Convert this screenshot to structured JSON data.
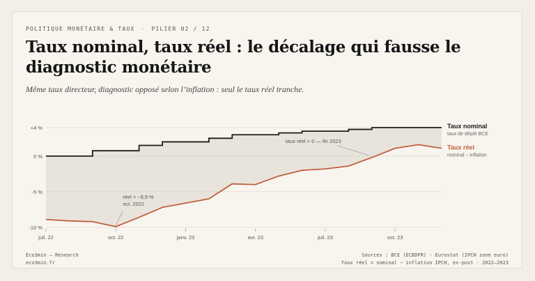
{
  "header": {
    "kicker": "POLITIQUE MONÉTAIRE & TAUX",
    "kicker_sep": "·",
    "kicker_pillar": "PILIER 02 / 12",
    "title": "Taux nominal, taux réel : le décalage qui fausse le diagnostic monétaire",
    "subtitle": "Même taux directeur, diagnostic opposé selon l’inflation : seul le taux réel tranche."
  },
  "footer": {
    "brand": "Eco3min — Research",
    "site": "eco3min.fr",
    "sources": "Sources : BCE (ECBDFR) · Eurostat (IPCH zone euro)",
    "note": "Taux réel = nominal − inflation IPCH, ex-post · 2022–2023"
  },
  "colors": {
    "nominal": "#1c1c1c",
    "real": "#c0603f",
    "gap_fill": "#e9e4db",
    "grid": "#dcd7cd",
    "zero": "#b9b3a8"
  },
  "chart_data": {
    "type": "line",
    "x": [
      "2022-07",
      "2022-08",
      "2022-09",
      "2022-10",
      "2022-11",
      "2022-12",
      "2023-01",
      "2023-02",
      "2023-03",
      "2023-04",
      "2023-05",
      "2023-06",
      "2023-07",
      "2023-08",
      "2023-09",
      "2023-10",
      "2023-11",
      "2023-12"
    ],
    "ylim": [
      -10,
      4
    ],
    "yticks": [
      {
        "value": 4,
        "label": "+4 %"
      },
      {
        "value": 0,
        "label": "0 %"
      },
      {
        "value": -5,
        "label": "-5 %"
      },
      {
        "value": -10,
        "label": "-10 %"
      }
    ],
    "xticks": [
      {
        "x": "2022-07",
        "label": "juil. 22"
      },
      {
        "x": "2022-10",
        "label": "oct. 22"
      },
      {
        "x": "2023-01",
        "label": "janv. 23"
      },
      {
        "x": "2023-04",
        "label": "avr. 23"
      },
      {
        "x": "2023-07",
        "label": "juil. 23"
      },
      {
        "x": "2023-10",
        "label": "oct. 23"
      }
    ],
    "series": [
      {
        "name": "Taux nominal",
        "sublabel": "taux de dépôt BCE",
        "style": "step",
        "steps": [
          {
            "from": "2022-07",
            "value": 0
          },
          {
            "from": "2022-09",
            "value": 0.75
          },
          {
            "from": "2022-11",
            "value": 1.5
          },
          {
            "from": "2022-12",
            "value": 2.0
          },
          {
            "from": "2023-02",
            "value": 2.5
          },
          {
            "from": "2023-03",
            "value": 3.0
          },
          {
            "from": "2023-05",
            "value": 3.25
          },
          {
            "from": "2023-06",
            "value": 3.5
          },
          {
            "from": "2023-08",
            "value": 3.75
          },
          {
            "from": "2023-09",
            "value": 4.0
          },
          {
            "end": "2023-12",
            "value": 4.0
          }
        ]
      },
      {
        "name": "Taux réel",
        "sublabel": "nominal − inflation",
        "style": "line",
        "values": [
          -8.9,
          -9.1,
          -9.2,
          -9.9,
          -8.6,
          -7.2,
          -6.6,
          -6.0,
          -3.9,
          -4.0,
          -2.8,
          -2.0,
          -1.8,
          -1.4,
          -0.2,
          1.1,
          1.6,
          1.1
        ]
      }
    ],
    "annotations": [
      {
        "x": "2022-10",
        "y": -9.9,
        "lines": [
          "réel = −9,9 %",
          "oct. 2022"
        ]
      },
      {
        "x": "2023-09",
        "y": 0,
        "lines": [
          "taux réel > 0 — fin 2023"
        ]
      }
    ]
  }
}
